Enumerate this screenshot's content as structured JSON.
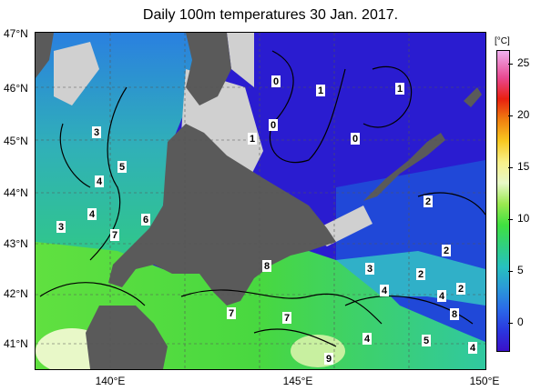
{
  "title": "Daily 100m temperatures 30 Jan. 2017.",
  "lat_labels": [
    "47°N",
    "46°N",
    "45°N",
    "44°N",
    "43°N",
    "42°N",
    "41°N"
  ],
  "lon_labels": [
    "140°E",
    "145°E",
    "150°E"
  ],
  "colorbar": {
    "unit": "[°C]",
    "ticks": [
      "25",
      "20",
      "15",
      "10",
      "5",
      "0"
    ],
    "range": [
      -2,
      27
    ]
  },
  "contour_labels": [
    "0",
    "1",
    "1",
    "1",
    "0",
    "1",
    "0",
    "3",
    "5",
    "4",
    "4",
    "3",
    "7",
    "6",
    "8",
    "2",
    "2",
    "3",
    "2",
    "2",
    "4",
    "4",
    "7",
    "7",
    "4",
    "5",
    "8",
    "4",
    "9"
  ],
  "colors": {
    "land": "#5a5a5a",
    "ice": "#d0d0d0",
    "cold_water": "#2a1cd0",
    "warm_water": "#40d840"
  }
}
